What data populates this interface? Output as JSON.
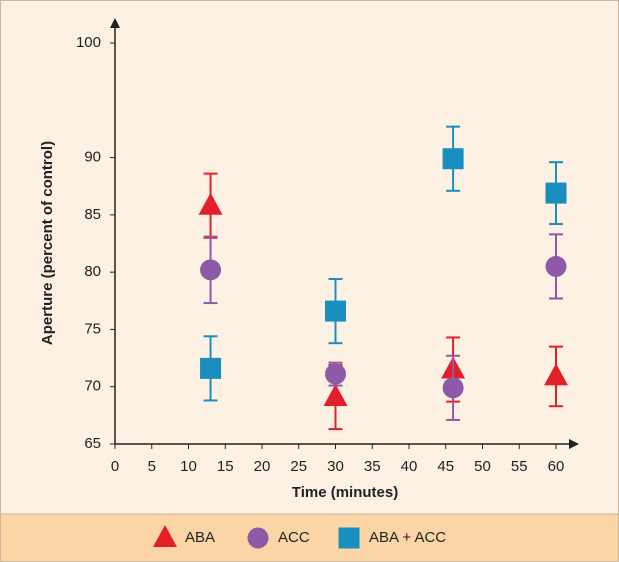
{
  "chart_data": {
    "type": "scatter",
    "x_label": "Time (minutes)",
    "y_label": "Aperture (percent of control)",
    "xlim": [
      0,
      60
    ],
    "xticks": [
      0,
      5,
      10,
      15,
      20,
      25,
      30,
      35,
      40,
      45,
      50,
      55,
      60
    ],
    "ylim": [
      65,
      100
    ],
    "yticks": [
      65,
      70,
      75,
      80,
      85,
      90,
      100
    ],
    "legend": "bottom",
    "series": [
      {
        "name": "ABA",
        "color": "#e3202a",
        "marker": "triangle",
        "x": [
          13,
          30,
          46,
          60
        ],
        "values": [
          85.8,
          69.1,
          71.5,
          70.9
        ],
        "errors": [
          2.8,
          2.8,
          2.8,
          2.6
        ]
      },
      {
        "name": "ACC",
        "color": "#8e5aa8",
        "marker": "circle",
        "x": [
          13,
          30,
          46,
          60
        ],
        "values": [
          80.2,
          71.1,
          69.9,
          80.5
        ],
        "errors": [
          2.9,
          1.0,
          2.8,
          2.8
        ]
      },
      {
        "name": "ABA + ACC",
        "color": "#1a8fbf",
        "marker": "square",
        "x": [
          13,
          30,
          46,
          60
        ],
        "values": [
          71.6,
          76.6,
          89.9,
          86.9
        ],
        "errors": [
          2.8,
          2.8,
          2.8,
          2.7
        ]
      }
    ]
  }
}
